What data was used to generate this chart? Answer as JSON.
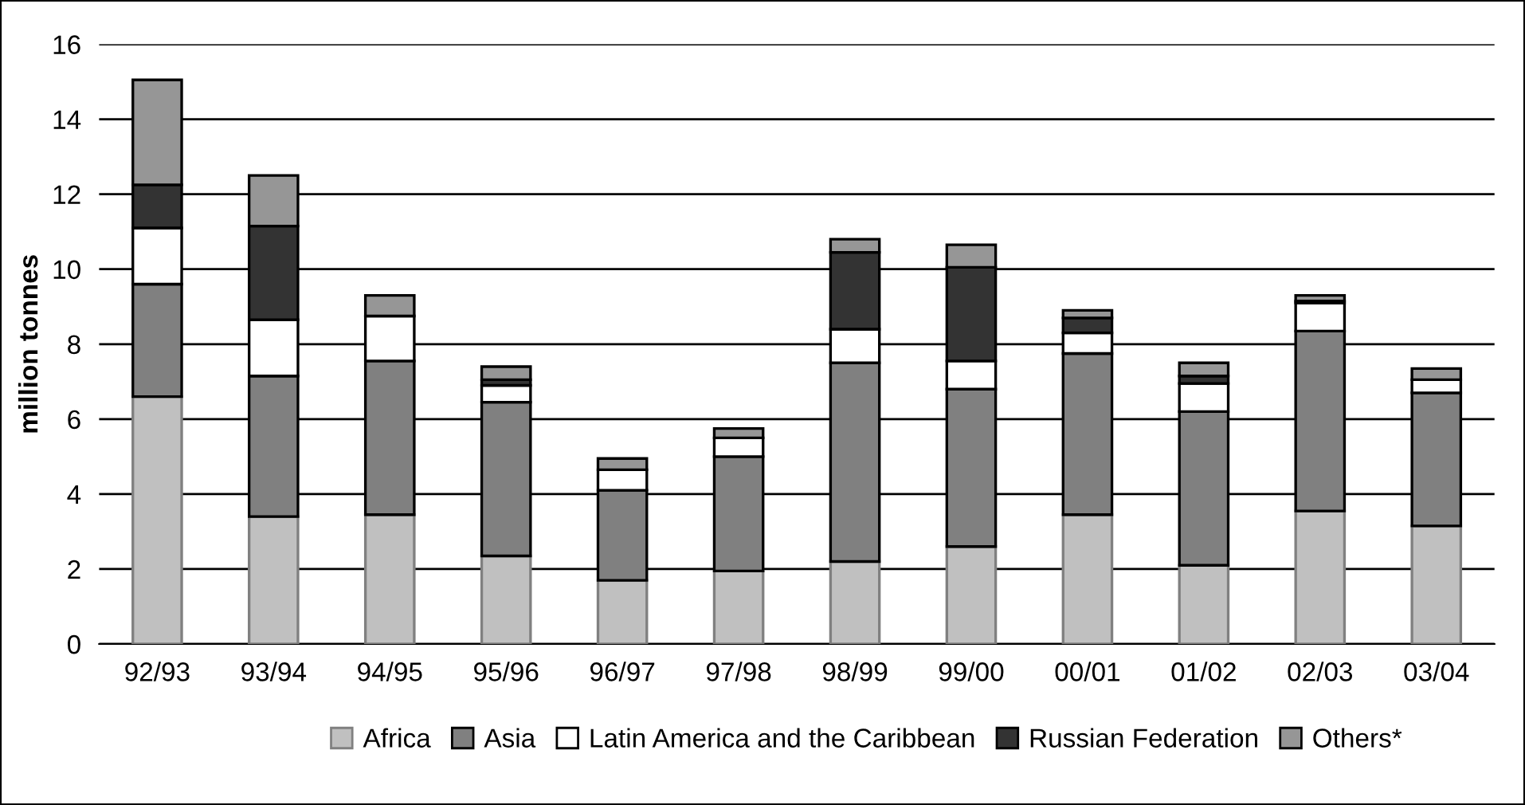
{
  "chart_data": {
    "type": "bar",
    "stacked": true,
    "ylabel": "million tonnes",
    "categories": [
      "92/93",
      "93/94",
      "94/95",
      "95/96",
      "96/97",
      "97/98",
      "98/99",
      "99/00",
      "00/01",
      "01/02",
      "02/03",
      "03/04"
    ],
    "series": [
      {
        "name": "Africa",
        "color": "#c0c0c0",
        "values": [
          6.6,
          3.4,
          3.45,
          2.35,
          1.7,
          1.95,
          2.2,
          2.6,
          3.45,
          2.1,
          3.55,
          3.15
        ]
      },
      {
        "name": "Asia",
        "color": "#808080",
        "values": [
          3.0,
          3.75,
          4.1,
          4.1,
          2.4,
          3.05,
          5.3,
          4.2,
          4.3,
          4.1,
          4.8,
          3.55
        ]
      },
      {
        "name": "Latin America and the Caribbean",
        "color": "#ffffff",
        "values": [
          1.5,
          1.5,
          1.2,
          0.45,
          0.55,
          0.5,
          0.9,
          0.75,
          0.55,
          0.75,
          0.75,
          0.35
        ]
      },
      {
        "name": "Russian Federation",
        "color": "#333333",
        "values": [
          1.15,
          2.5,
          null,
          0.15,
          null,
          null,
          2.05,
          2.5,
          0.4,
          0.2,
          0.05,
          null
        ]
      },
      {
        "name": "Others*",
        "color": "#969696",
        "values": [
          2.8,
          1.35,
          0.55,
          0.35,
          0.3,
          0.25,
          0.35,
          0.6,
          0.2,
          0.35,
          0.15,
          0.3
        ]
      }
    ],
    "ylim": [
      0,
      16
    ],
    "yticks": [
      0,
      2,
      4,
      6,
      8,
      10,
      12,
      14,
      16
    ],
    "grid": "y",
    "legend": "bottom"
  }
}
